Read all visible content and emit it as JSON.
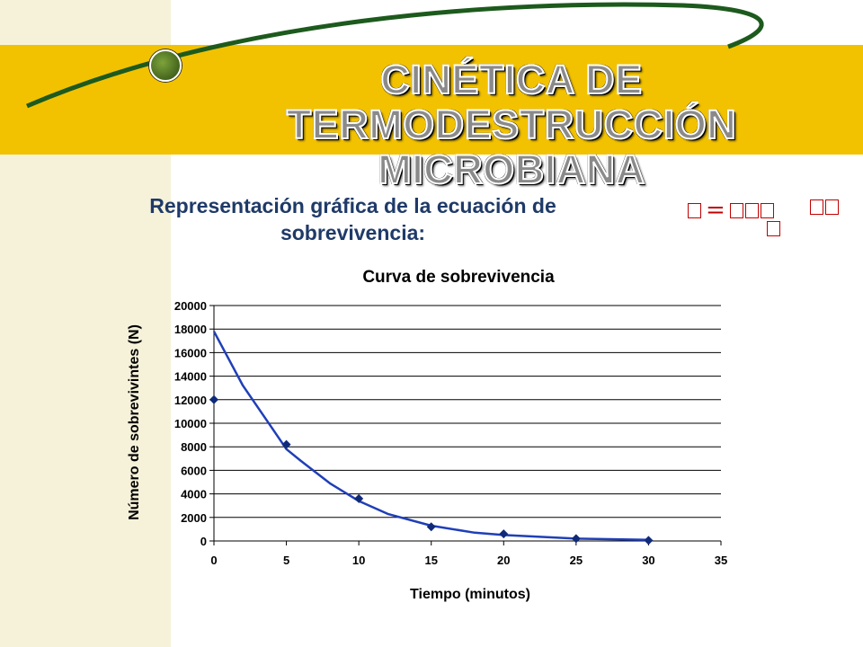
{
  "slide": {
    "title": "CINÉTICA DE TERMODESTRUCCIÓN MICROBIANA",
    "subtitle": "Representación gráfica de la ecuación de sobrevivencia:",
    "formula_glyph": "="
  },
  "colors": {
    "band": "#f2c200",
    "title_fill": "#8a8a8a",
    "subtitle": "#1f3a68",
    "formula": "#c00000",
    "series": "#1f3fb8",
    "points": "#102a7a",
    "grid": "#000000"
  },
  "chart_data": {
    "type": "scatter",
    "title": "Curva de sobrevivencia",
    "xlabel": "Tiempo (minutos)",
    "ylabel": "Número de sobrevivintes (N)",
    "xlim": [
      0,
      35
    ],
    "ylim": [
      0,
      20000
    ],
    "xticks": [
      0,
      5,
      10,
      15,
      20,
      25,
      30,
      35
    ],
    "yticks": [
      0,
      2000,
      4000,
      6000,
      8000,
      10000,
      12000,
      14000,
      16000,
      18000,
      20000
    ],
    "grid": "horizontal",
    "series": [
      {
        "kind": "points",
        "x": [
          0,
          5,
          10,
          15,
          20,
          25,
          30
        ],
        "y": [
          12000,
          8200,
          3600,
          1200,
          600,
          200,
          50
        ]
      },
      {
        "kind": "trendline",
        "model": "exponential",
        "x": [
          0,
          2,
          4,
          5,
          6,
          8,
          10,
          12,
          15,
          18,
          20,
          25,
          30
        ],
        "y": [
          17800,
          13200,
          9600,
          7800,
          6800,
          4900,
          3400,
          2300,
          1300,
          700,
          500,
          200,
          100
        ]
      }
    ]
  }
}
